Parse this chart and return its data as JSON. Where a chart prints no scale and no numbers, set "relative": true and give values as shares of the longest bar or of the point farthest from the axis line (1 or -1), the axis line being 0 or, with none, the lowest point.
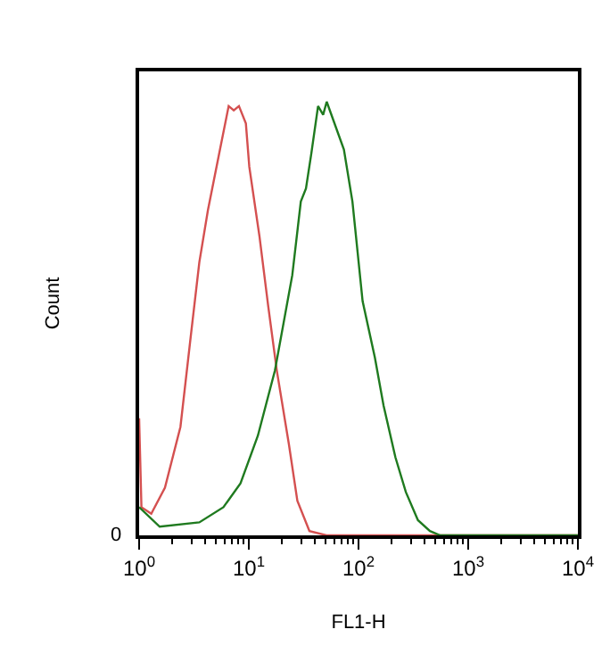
{
  "chart_data": {
    "type": "line",
    "relative": true,
    "xlabel": "FL1-H",
    "ylabel": "Count",
    "log": "x",
    "xlim": [
      1,
      10000
    ],
    "xticks": [
      {
        "value": 1,
        "label": "10$^{0}$"
      },
      {
        "value": 10,
        "label": "10$^{1}$"
      },
      {
        "value": 100,
        "label": "10$^{2}$"
      },
      {
        "value": 1000,
        "label": "10$^{3}$"
      },
      {
        "value": 10000,
        "label": "10$^{4}$"
      }
    ],
    "marker": "none",
    "line_style": "solid",
    "annotations": [
      "0"
    ],
    "series": [
      {
        "color": "#d45050",
        "x": [
          1,
          1.05,
          1.29,
          1.72,
          2.38,
          2.96,
          3.54,
          4.24,
          5.46,
          6.55,
          7.29,
          8.13,
          9.4,
          10.1,
          12.5,
          15.0,
          18.0,
          23.2,
          27.7,
          35.7,
          51,
          170,
          10000
        ],
        "values": [
          0.27,
          0.065,
          0.05,
          0.11,
          0.25,
          0.46,
          0.63,
          0.75,
          0.89,
          0.99,
          0.98,
          0.99,
          0.95,
          0.85,
          0.69,
          0.53,
          0.38,
          0.21,
          0.08,
          0.01,
          0,
          0,
          0
        ]
      },
      {
        "color": "#1f7a1f",
        "x": [
          1,
          1.54,
          3.54,
          5.87,
          8.4,
          12.1,
          17.3,
          24.9,
          29.8,
          33.2,
          37.1,
          42.8,
          47.6,
          51.3,
          73.6,
          88,
          109,
          141,
          169,
          217,
          270,
          348,
          448,
          556,
          10000
        ],
        "values": [
          0.065,
          0.02,
          0.03,
          0.065,
          0.12,
          0.23,
          0.38,
          0.6,
          0.77,
          0.8,
          0.88,
          0.99,
          0.97,
          1.0,
          0.89,
          0.77,
          0.54,
          0.41,
          0.3,
          0.18,
          0.1,
          0.035,
          0.01,
          0,
          0
        ]
      }
    ]
  }
}
